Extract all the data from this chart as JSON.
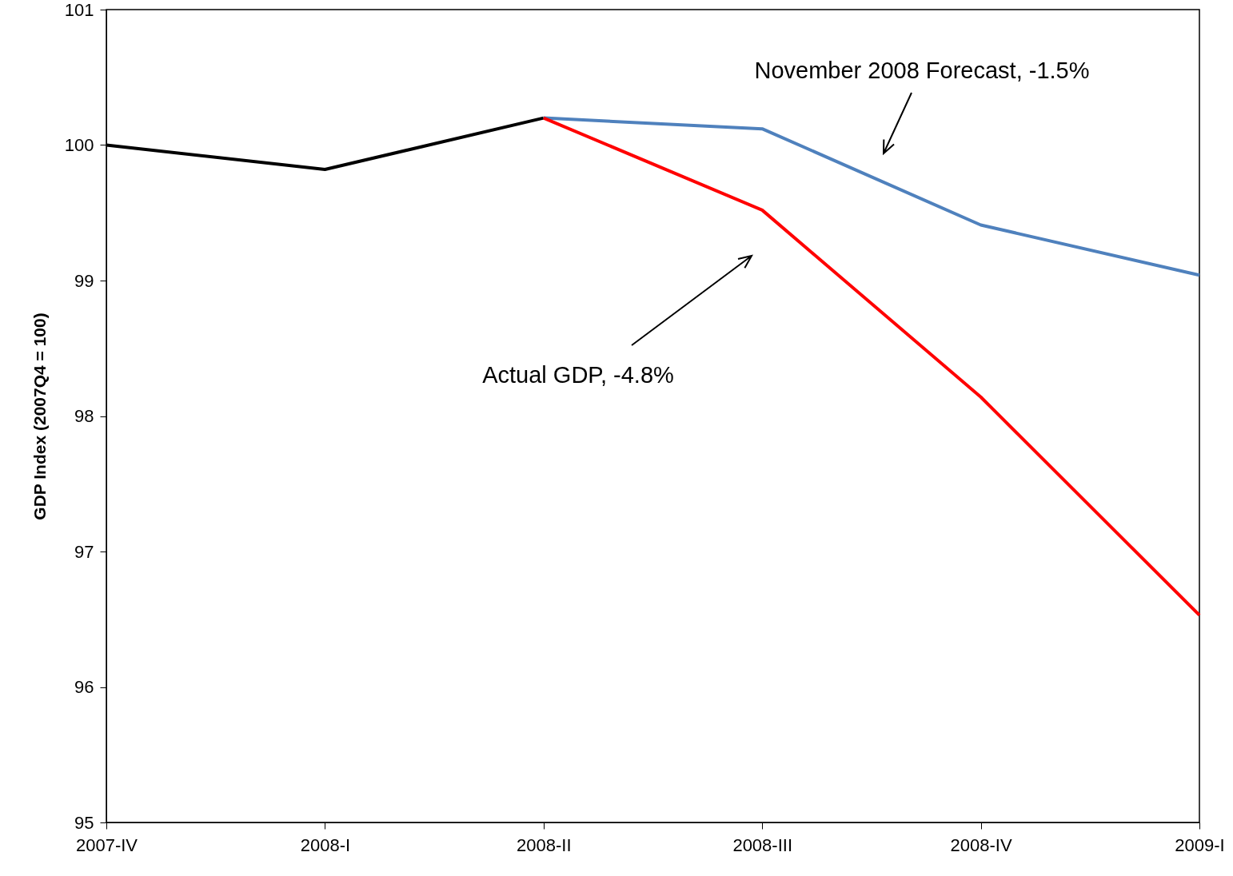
{
  "chart_data": {
    "type": "line",
    "ylabel": "GDP Index (2007Q4 = 100)",
    "categories": [
      "2007-IV",
      "2008-I",
      "2008-II",
      "2008-III",
      "2008-IV",
      "2009-I"
    ],
    "series": [
      {
        "color": "#000000",
        "values": [
          100,
          99.82,
          100.2,
          null,
          null,
          null
        ]
      },
      {
        "color": "#4f81bd",
        "values": [
          null,
          null,
          100.2,
          100.12,
          99.41,
          99.04
        ]
      },
      {
        "color": "#ff0000",
        "values": [
          null,
          null,
          100.2,
          99.52,
          98.14,
          96.53
        ]
      }
    ],
    "ylim": [
      95,
      101
    ],
    "yticks": [
      95,
      96,
      97,
      98,
      99,
      100,
      101
    ],
    "grid": false,
    "marker": "none",
    "line_style": "solid",
    "annotations": [
      "November 2008 Forecast, -1.5%",
      "Actual GDP, -4.8%"
    ]
  }
}
